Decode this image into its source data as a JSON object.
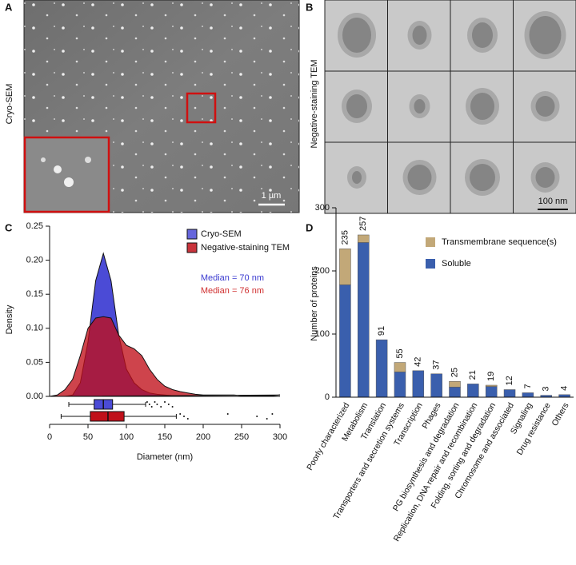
{
  "panels": {
    "a": {
      "label": "A",
      "side_label": "Cryo-SEM",
      "scale_bar": "1 µm"
    },
    "b": {
      "label": "B",
      "side_label": "Negative-staining  TEM",
      "scale_bar": "100 nm"
    }
  },
  "chart_data": [
    {
      "type": "density",
      "label": "C",
      "xlabel": "Diameter (nm)",
      "ylabel": "Density",
      "x": [
        0,
        10,
        20,
        30,
        40,
        50,
        60,
        70,
        80,
        90,
        100,
        110,
        120,
        130,
        140,
        150,
        160,
        170,
        180,
        190,
        200,
        210,
        220,
        230,
        240,
        250,
        260,
        270,
        280,
        290,
        300
      ],
      "xlim": [
        0,
        300
      ],
      "xticks": [
        0,
        50,
        100,
        150,
        200,
        250,
        300
      ],
      "ylim": [
        0,
        0.25
      ],
      "yticks": [
        {
          "value": 0,
          "label": "0.00"
        },
        {
          "value": 0.05,
          "label": "0.05"
        },
        {
          "value": 0.1,
          "label": "0.10"
        },
        {
          "value": 0.15,
          "label": "0.15"
        },
        {
          "value": 0.2,
          "label": "0.20"
        },
        {
          "value": 0.25,
          "label": "0.25"
        }
      ],
      "series": [
        {
          "name": "Cryo-SEM",
          "color": "#4b4bd6",
          "annotation": "Median = 70 nm",
          "annotation_color": "#3b3bd0",
          "values": [
            0,
            0,
            0,
            0.002,
            0.02,
            0.08,
            0.17,
            0.21,
            0.17,
            0.09,
            0.04,
            0.02,
            0.01,
            0.005,
            0.003,
            0.002,
            0.001,
            0,
            0,
            0,
            0,
            0,
            0,
            0,
            0,
            0,
            0,
            0,
            0,
            0,
            0
          ],
          "box": {
            "whisker_low": 25,
            "q1": 58,
            "median": 70,
            "q3": 82,
            "whisker_high": 125,
            "outliers": [
              127,
              130,
              133,
              137,
              140,
              145,
              150,
              155,
              160
            ]
          }
        },
        {
          "name": "Negative-staining  TEM",
          "color": "#c0101a",
          "annotation": "Median = 76 nm",
          "annotation_color": "#d03030",
          "values": [
            0,
            0.002,
            0.01,
            0.025,
            0.06,
            0.1,
            0.115,
            0.117,
            0.115,
            0.09,
            0.075,
            0.07,
            0.06,
            0.04,
            0.025,
            0.015,
            0.01,
            0.007,
            0.005,
            0.003,
            0.002,
            0.002,
            0.002,
            0.002,
            0.002,
            0.001,
            0.001,
            0.001,
            0.001,
            0.001,
            0.002
          ],
          "box": {
            "whisker_low": 15,
            "q1": 53,
            "median": 76,
            "q3": 97,
            "whisker_high": 165,
            "outliers": [
              170,
              175,
              180,
              232,
              270,
              283,
              290
            ]
          }
        }
      ]
    },
    {
      "type": "stacked_bar",
      "label": "D",
      "ylabel": "Number of proteins",
      "categories": [
        "Poorly characterized",
        "Metabolism",
        "Translation",
        "Transporters and secretion systems",
        "Transcription",
        "Phages",
        "PG biosynthesis and degradation",
        "Replication, DNA repair and recombination",
        "Folding, sorting and degradation",
        "Chromosome and associated",
        "Signaling",
        "Drug resistance",
        "Others"
      ],
      "ylim": [
        0,
        300
      ],
      "yticks": [
        0,
        100,
        200,
        300
      ],
      "series": [
        {
          "name": "Soluble",
          "color": "#3a5fad",
          "values": [
            178,
            245,
            91,
            40,
            42,
            37,
            16,
            21,
            17,
            12,
            7,
            3,
            4
          ]
        },
        {
          "name": "Transmembrane sequence(s)",
          "color": "#c2a878",
          "values": [
            57,
            12,
            0,
            15,
            0,
            0,
            9,
            0,
            2,
            0,
            0,
            0,
            0
          ]
        }
      ],
      "totals": [
        235,
        257,
        91,
        55,
        42,
        37,
        25,
        21,
        19,
        12,
        7,
        3,
        4
      ]
    }
  ]
}
